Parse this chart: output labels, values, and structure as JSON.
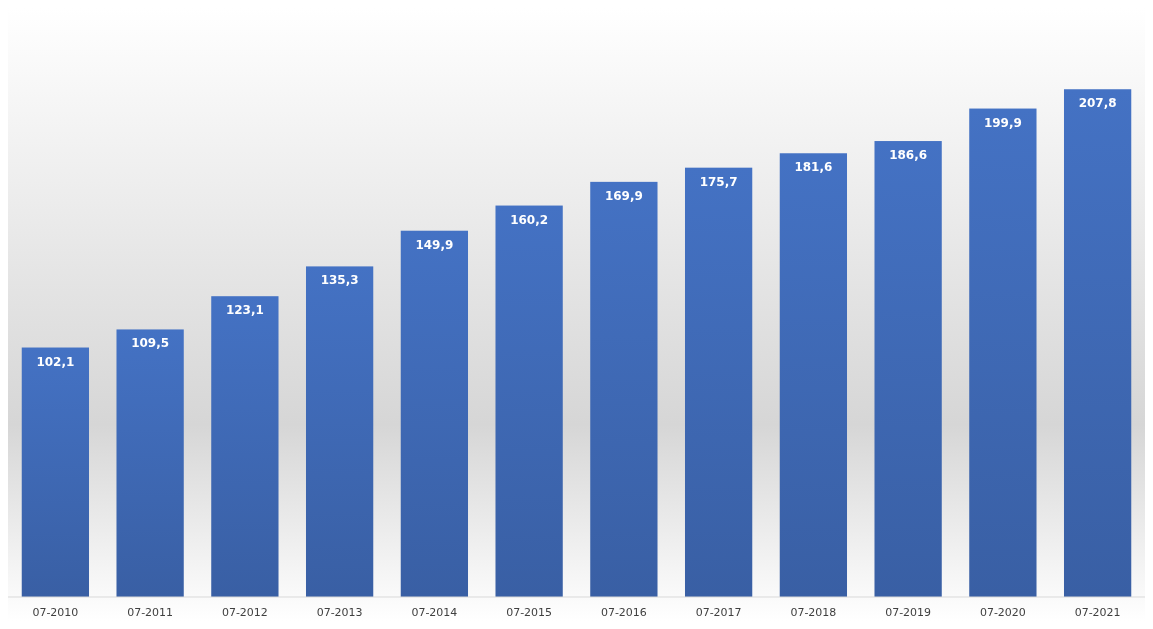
{
  "chart_data": {
    "type": "bar",
    "categories": [
      "07-2010",
      "07-2011",
      "07-2012",
      "07-2013",
      "07-2014",
      "07-2015",
      "07-2016",
      "07-2017",
      "07-2018",
      "07-2019",
      "07-2020",
      "07-2021"
    ],
    "values": [
      102.1,
      109.5,
      123.1,
      135.3,
      149.9,
      160.2,
      169.9,
      175.7,
      181.6,
      186.6,
      199.9,
      207.8
    ],
    "value_labels": [
      "102,1",
      "109,5",
      "123,1",
      "135,3",
      "149,9",
      "160,2",
      "169,9",
      "175,7",
      "181,6",
      "186,6",
      "199,9",
      "207,8"
    ],
    "color": "#4472c4"
  }
}
